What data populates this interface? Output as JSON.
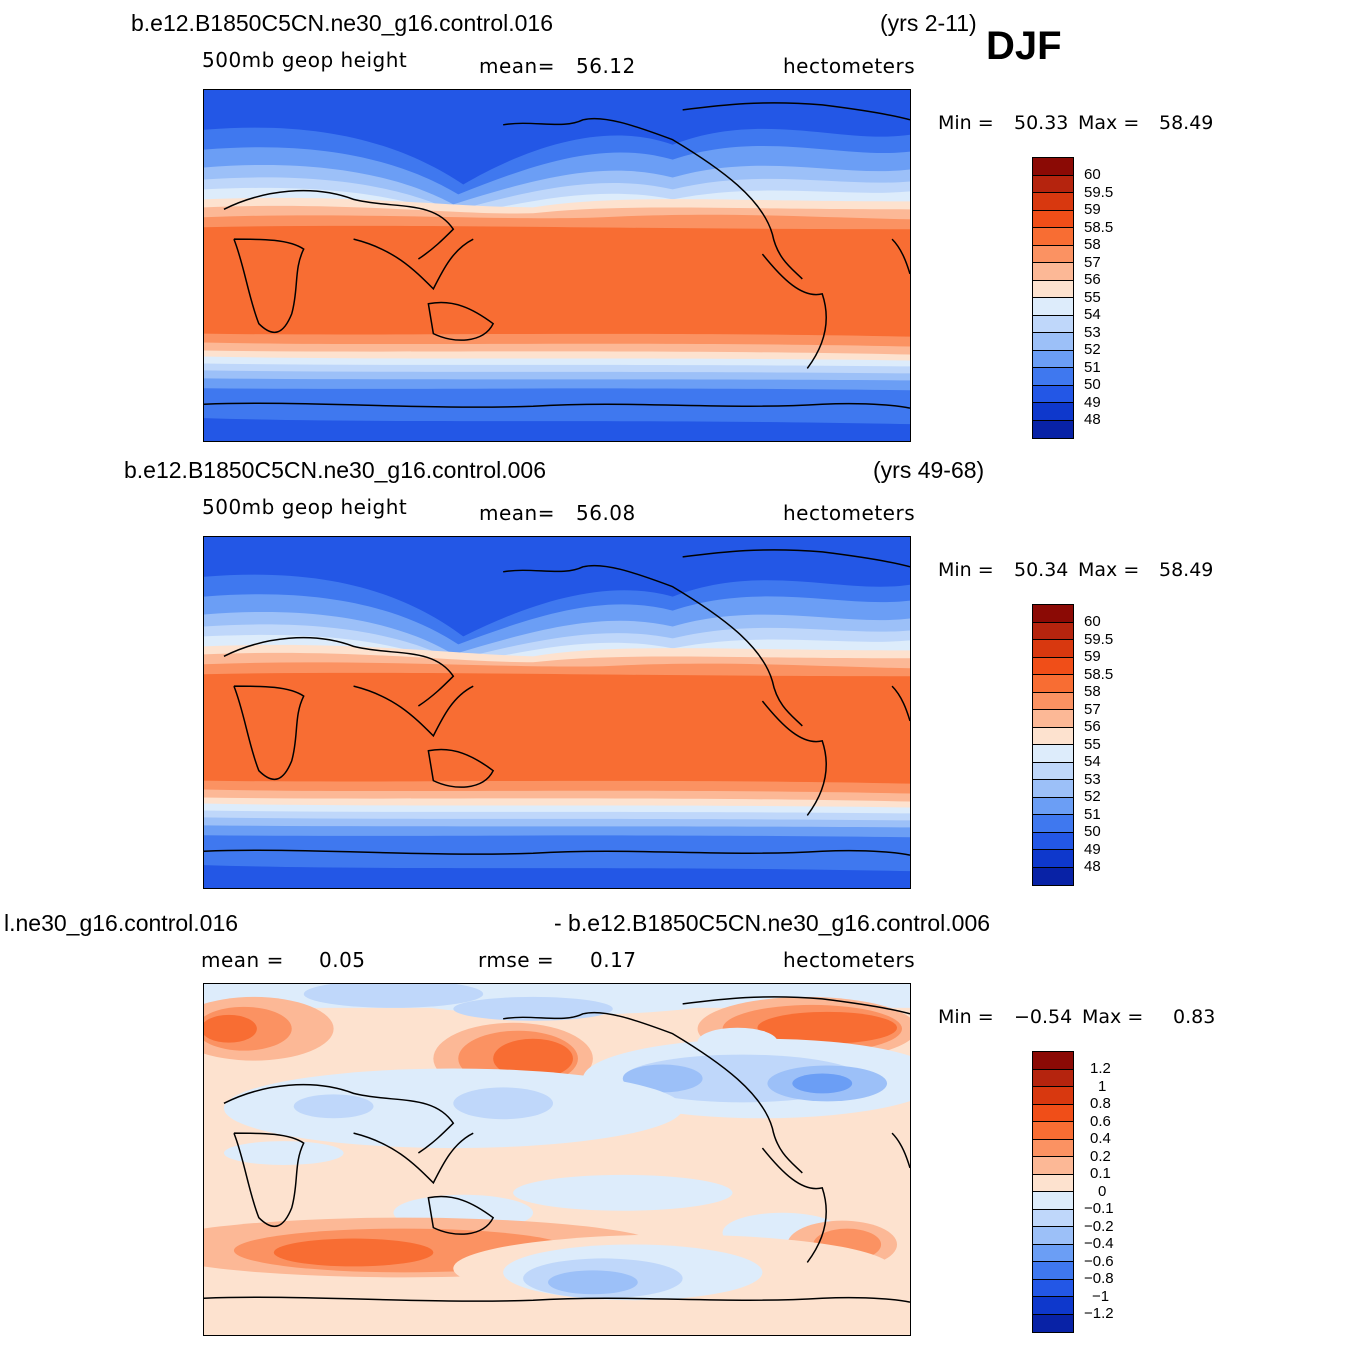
{
  "season": "DJF",
  "panels": [
    {
      "id": "top",
      "case": "b.e12.B1850C5CN.ne30_g16.control.016",
      "years": "(yrs 2-11)",
      "variable": "500mb  geop  height",
      "stat1_label": "mean=",
      "stat1_value": "56.12",
      "units": "hectometers",
      "min_label": "Min =",
      "min_value": "50.33",
      "max_label": "Max =",
      "max_value": "58.49"
    },
    {
      "id": "middle",
      "case": "b.e12.B1850C5CN.ne30_g16.control.006",
      "years": "(yrs 49-68)",
      "variable": "500mb  geop  height",
      "stat1_label": "mean=",
      "stat1_value": "56.08",
      "units": "hectometers",
      "min_label": "Min =",
      "min_value": "50.34",
      "max_label": "Max =",
      "max_value": "58.49"
    },
    {
      "id": "difference",
      "case_left": "l.ne30_g16.control.016",
      "case_right": "- b.e12.B1850C5CN.ne30_g16.control.006",
      "stat1_label": "mean =",
      "stat1_value": "0.05",
      "stat2_label": "rmse =",
      "stat2_value": "0.17",
      "units": "hectometers",
      "min_label": "Min =",
      "min_value": "−0.54",
      "max_label": "Max =",
      "max_value": "0.83"
    }
  ],
  "colorbars": {
    "height": {
      "labels": [
        "60",
        "59.5",
        "59",
        "58.5",
        "58",
        "57",
        "56",
        "55",
        "54",
        "53",
        "52",
        "51",
        "50",
        "49",
        "48"
      ],
      "colors": [
        "#8b0a05",
        "#b5240e",
        "#d8380f",
        "#f04e18",
        "#f86d33",
        "#fb9262",
        "#fcb896",
        "#fde2cf",
        "#ddecfb",
        "#bfd7fa",
        "#9cc0f8",
        "#6b9ef5",
        "#3f78ef",
        "#2357e6",
        "#0e38cc",
        "#0822a6",
        "#020f7a"
      ]
    },
    "difference": {
      "labels": [
        "1.2",
        "1",
        "0.8",
        "0.6",
        "0.4",
        "0.2",
        "0.1",
        "0",
        "−0.1",
        "−0.2",
        "−0.4",
        "−0.6",
        "−0.8",
        "−1",
        "−1.2"
      ],
      "colors": [
        "#8b0a05",
        "#b5240e",
        "#d8380f",
        "#f04e18",
        "#f86d33",
        "#fb9262",
        "#fcb896",
        "#fde2cf",
        "#ddecfb",
        "#bfd7fa",
        "#9cc0f8",
        "#6b9ef5",
        "#3f78ef",
        "#2357e6",
        "#0e38cc",
        "#0822a6",
        "#020f7a"
      ]
    }
  }
}
